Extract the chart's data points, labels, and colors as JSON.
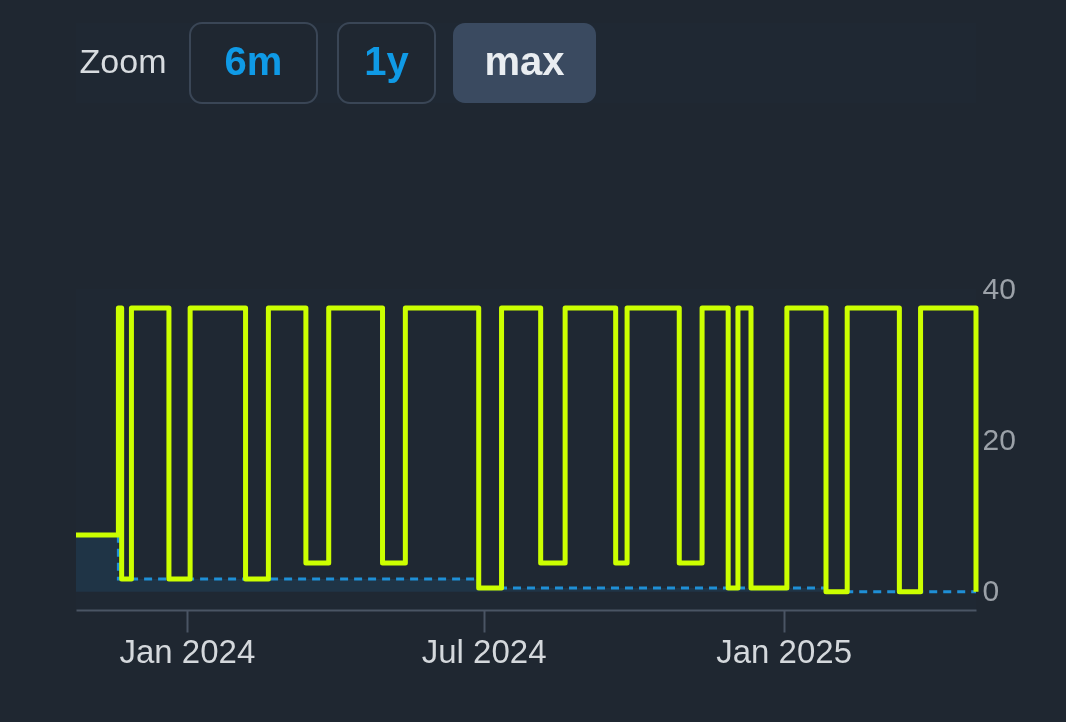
{
  "chart_data": {
    "type": "step",
    "annotations": [
      "Zoom",
      "6m",
      "1y",
      "max"
    ],
    "series": [
      {
        "type": "area",
        "color": "#1f8fd6",
        "line_style": "dashed",
        "x": [
          "2023-10-25",
          "2023-11-20",
          "2023-11-20",
          "2024-06-28",
          "2024-06-28",
          "2025-01-27",
          "2025-01-27",
          "2025-04-29"
        ],
        "values": [
          7.5,
          7.5,
          1.7,
          1.7,
          0.5,
          0.5,
          0,
          0
        ]
      },
      {
        "color": "#ccff00",
        "line_style": "solid",
        "x": [
          "2023-10-25",
          "2023-11-20",
          "2023-11-22",
          "2023-11-28",
          "2023-12-21",
          "2024-01-03",
          "2024-02-06",
          "2024-02-20",
          "2024-03-14",
          "2024-03-28",
          "2024-04-30",
          "2024-05-14",
          "2024-06-28",
          "2024-07-12",
          "2024-08-05",
          "2024-08-20",
          "2024-09-20",
          "2024-09-27",
          "2024-10-29",
          "2024-11-12",
          "2024-11-28",
          "2024-12-04",
          "2024-12-12",
          "2025-01-03",
          "2025-01-27",
          "2025-02-09",
          "2025-03-13",
          "2025-03-26",
          "2025-04-29"
        ],
        "values": [
          7.5,
          37.5,
          1.7,
          37.5,
          1.7,
          37.5,
          1.7,
          37.5,
          3.8,
          37.5,
          3.8,
          37.5,
          0.5,
          37.5,
          3.8,
          37.5,
          3.8,
          37.5,
          3.8,
          37.5,
          0.5,
          37.5,
          0.5,
          37.5,
          0,
          37.5,
          0,
          37.5,
          0
        ]
      }
    ],
    "xlim": [
      "2023-10-25",
      "2025-04-29"
    ],
    "xticks": [
      {
        "value": "2024-01-01",
        "label": "Jan 2024"
      },
      {
        "value": "2024-07-01",
        "label": "Jul 2024"
      },
      {
        "value": "2025-01-01",
        "label": "Jan 2025"
      }
    ],
    "ylim": [
      -2.4,
      40
    ],
    "yticks": [
      0,
      20,
      40
    ],
    "grid": false,
    "marker": "none"
  }
}
